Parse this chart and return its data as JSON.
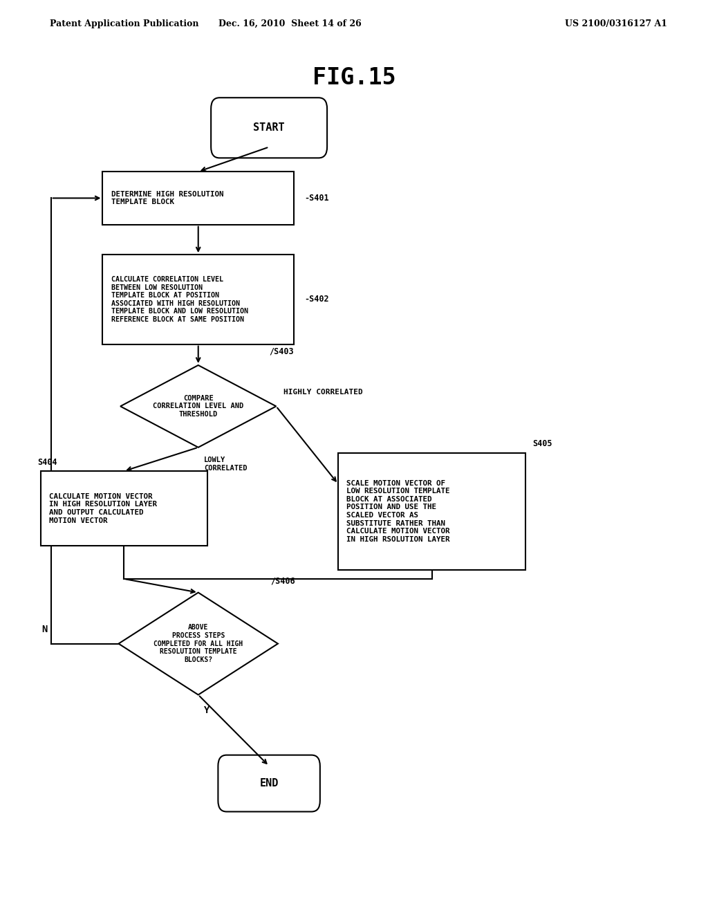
{
  "title": "FIG.15",
  "header_left": "Patent Application Publication",
  "header_mid": "Dec. 16, 2010  Sheet 14 of 26",
  "header_right": "US 2100/0316127 A1",
  "bg_color": "#ffffff",
  "start_label": "START",
  "end_label": "END",
  "s401_label": "DETERMINE HIGH RESOLUTION\nTEMPLATE BLOCK",
  "s401_step": "-S401",
  "s402_label": "CALCULATE CORRELATION LEVEL\nBETWEEN LOW RESOLUTION\nTEMPLATE BLOCK AT POSITION\nASSOCIATED WITH HIGH RESOLUTION\nTEMPLATE BLOCK AND LOW RESOLUTION\nREFERENCE BLOCK AT SAME POSITION",
  "s402_step": "-S402",
  "s403_label": "COMPARE\nCORRELATION LEVEL AND\nTHRESHOLD",
  "s403_step": "/S403",
  "s404_label": "CALCULATE MOTION VECTOR\nIN HIGH RESOLUTION LAYER\nAND OUTPUT CALCULATED\nMOTION VECTOR",
  "s404_step": "S404",
  "s405_label": "SCALE MOTION VECTOR OF\nLOW RESOLUTION TEMPLATE\nBLOCK AT ASSOCIATED\nPOSITION AND USE THE\nSCALED VECTOR AS\nSUBSTITUTE RATHER THAN\nCALCULATE MOTION VECTOR\nIN HIGH RSOLUTION LAYER",
  "s405_step": "S405",
  "s406_label": "ABOVE\nPROCESS STEPS\nCOMPLETED FOR ALL HIGH\nRESOLUTION TEMPLATE\nBLOCKS?",
  "s406_step": "/S406",
  "highly_correlated": "HIGHLY CORRELATED",
  "lowly_correlated": "LOWLY\nCORRELATED",
  "label_y": "Y",
  "label_n": "N"
}
